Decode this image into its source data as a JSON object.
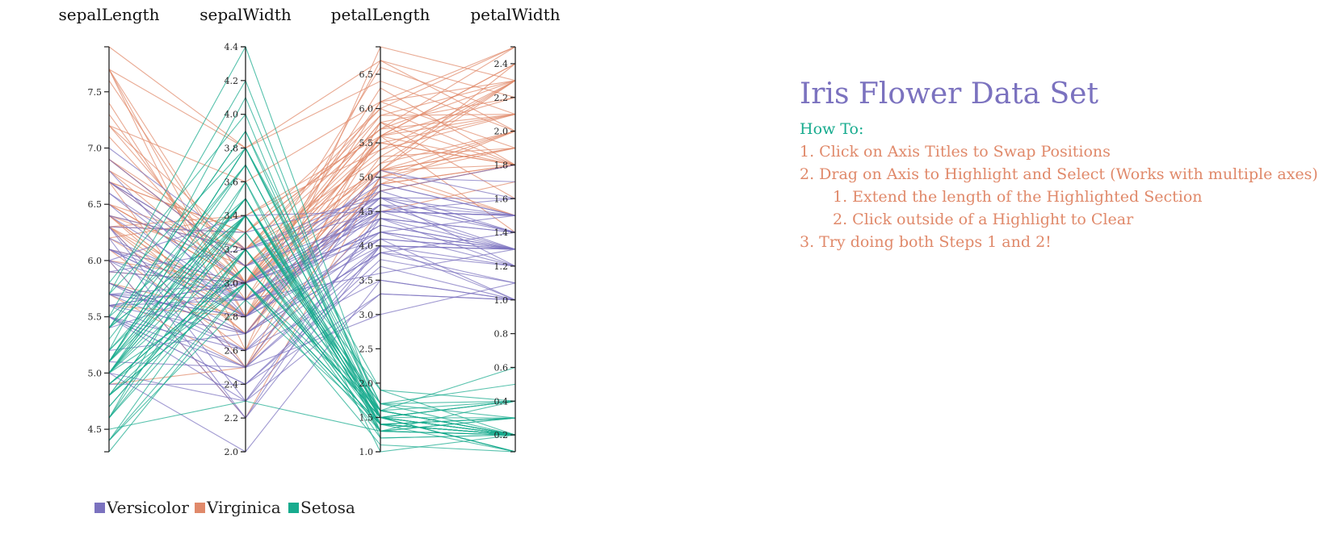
{
  "info": {
    "title": "Iris Flower Data Set",
    "howto": "How To:",
    "steps": [
      "1. Click on Axis Titles to Swap Positions",
      "2. Drag on Axis to Highlight and Select (Works with multiple axes)",
      "1. Extend the length of the Highlighted Section",
      "2. Click outside of a Highlight to Clear",
      "3. Try doing both Steps 1 and 2!"
    ]
  },
  "colors": {
    "Versicolor": "#7b72bf",
    "Virginica": "#e0896a",
    "Setosa": "#17ab8e"
  },
  "chart_data": {
    "type": "parallel-coordinates",
    "dimensions": [
      {
        "name": "sepalLength",
        "range": [
          4.3,
          7.9
        ],
        "ticks": [
          4.5,
          5.0,
          5.5,
          6.0,
          6.5,
          7.0,
          7.5
        ]
      },
      {
        "name": "sepalWidth",
        "range": [
          2.0,
          4.4
        ],
        "ticks": [
          2.0,
          2.2,
          2.4,
          2.6,
          2.8,
          3.0,
          3.2,
          3.4,
          3.6,
          3.8,
          4.0,
          4.2,
          4.4
        ]
      },
      {
        "name": "petalLength",
        "range": [
          1.0,
          6.9
        ],
        "ticks": [
          1.0,
          1.5,
          2.0,
          2.5,
          3.0,
          3.5,
          4.0,
          4.5,
          5.0,
          5.5,
          6.0,
          6.5
        ]
      },
      {
        "name": "petalWidth",
        "range": [
          0.1,
          2.5
        ],
        "ticks": [
          0.2,
          0.4,
          0.6,
          0.8,
          1.0,
          1.2,
          1.4,
          1.6,
          1.8,
          2.0,
          2.2,
          2.4
        ]
      }
    ],
    "legend": [
      "Versicolor",
      "Virginica",
      "Setosa"
    ],
    "series": [
      {
        "name": "Setosa",
        "values": [
          [
            5.1,
            3.5,
            1.4,
            0.2
          ],
          [
            4.9,
            3.0,
            1.4,
            0.2
          ],
          [
            4.7,
            3.2,
            1.3,
            0.2
          ],
          [
            4.6,
            3.1,
            1.5,
            0.2
          ],
          [
            5.0,
            3.6,
            1.4,
            0.2
          ],
          [
            5.4,
            3.9,
            1.7,
            0.4
          ],
          [
            4.6,
            3.4,
            1.4,
            0.3
          ],
          [
            5.0,
            3.4,
            1.5,
            0.2
          ],
          [
            4.4,
            2.9,
            1.4,
            0.2
          ],
          [
            4.9,
            3.1,
            1.5,
            0.1
          ],
          [
            5.4,
            3.7,
            1.5,
            0.2
          ],
          [
            4.8,
            3.4,
            1.6,
            0.2
          ],
          [
            4.8,
            3.0,
            1.4,
            0.1
          ],
          [
            4.3,
            3.0,
            1.1,
            0.1
          ],
          [
            5.8,
            4.0,
            1.2,
            0.2
          ],
          [
            5.7,
            4.4,
            1.5,
            0.4
          ],
          [
            5.4,
            3.9,
            1.3,
            0.4
          ],
          [
            5.1,
            3.5,
            1.4,
            0.3
          ],
          [
            5.7,
            3.8,
            1.7,
            0.3
          ],
          [
            5.1,
            3.8,
            1.5,
            0.3
          ],
          [
            5.4,
            3.4,
            1.7,
            0.2
          ],
          [
            5.1,
            3.7,
            1.5,
            0.4
          ],
          [
            4.6,
            3.6,
            1.0,
            0.2
          ],
          [
            5.1,
            3.3,
            1.7,
            0.5
          ],
          [
            4.8,
            3.4,
            1.9,
            0.2
          ],
          [
            5.0,
            3.0,
            1.6,
            0.2
          ],
          [
            5.0,
            3.4,
            1.6,
            0.4
          ],
          [
            5.2,
            3.5,
            1.5,
            0.2
          ],
          [
            5.2,
            3.4,
            1.4,
            0.2
          ],
          [
            4.7,
            3.2,
            1.6,
            0.2
          ],
          [
            4.8,
            3.1,
            1.6,
            0.2
          ],
          [
            5.4,
            3.4,
            1.5,
            0.4
          ],
          [
            5.2,
            4.1,
            1.5,
            0.1
          ],
          [
            5.5,
            4.2,
            1.4,
            0.2
          ],
          [
            4.9,
            3.1,
            1.5,
            0.1
          ],
          [
            5.0,
            3.2,
            1.2,
            0.2
          ],
          [
            5.5,
            3.5,
            1.3,
            0.2
          ],
          [
            4.9,
            3.1,
            1.5,
            0.1
          ],
          [
            4.4,
            3.0,
            1.3,
            0.2
          ],
          [
            5.1,
            3.4,
            1.5,
            0.2
          ],
          [
            5.0,
            3.5,
            1.3,
            0.3
          ],
          [
            4.5,
            2.3,
            1.3,
            0.3
          ],
          [
            4.4,
            3.2,
            1.3,
            0.2
          ],
          [
            5.0,
            3.5,
            1.6,
            0.6
          ],
          [
            5.1,
            3.8,
            1.9,
            0.4
          ],
          [
            4.8,
            3.0,
            1.4,
            0.3
          ],
          [
            5.1,
            3.8,
            1.6,
            0.2
          ],
          [
            4.6,
            3.2,
            1.4,
            0.2
          ],
          [
            5.3,
            3.7,
            1.5,
            0.2
          ],
          [
            5.0,
            3.3,
            1.4,
            0.2
          ]
        ]
      },
      {
        "name": "Versicolor",
        "values": [
          [
            7.0,
            3.2,
            4.7,
            1.4
          ],
          [
            6.4,
            3.2,
            4.5,
            1.5
          ],
          [
            6.9,
            3.1,
            4.9,
            1.5
          ],
          [
            5.5,
            2.3,
            4.0,
            1.3
          ],
          [
            6.5,
            2.8,
            4.6,
            1.5
          ],
          [
            5.7,
            2.8,
            4.5,
            1.3
          ],
          [
            6.3,
            3.3,
            4.7,
            1.6
          ],
          [
            4.9,
            2.4,
            3.3,
            1.0
          ],
          [
            6.6,
            2.9,
            4.6,
            1.3
          ],
          [
            5.2,
            2.7,
            3.9,
            1.4
          ],
          [
            5.0,
            2.0,
            3.5,
            1.0
          ],
          [
            5.9,
            3.0,
            4.2,
            1.5
          ],
          [
            6.0,
            2.2,
            4.0,
            1.0
          ],
          [
            6.1,
            2.9,
            4.7,
            1.4
          ],
          [
            5.6,
            2.9,
            3.6,
            1.3
          ],
          [
            6.7,
            3.1,
            4.4,
            1.4
          ],
          [
            5.6,
            3.0,
            4.5,
            1.5
          ],
          [
            5.8,
            2.7,
            4.1,
            1.0
          ],
          [
            6.2,
            2.2,
            4.5,
            1.5
          ],
          [
            5.6,
            2.5,
            3.9,
            1.1
          ],
          [
            5.9,
            3.2,
            4.8,
            1.8
          ],
          [
            6.1,
            2.8,
            4.0,
            1.3
          ],
          [
            6.3,
            2.5,
            4.9,
            1.5
          ],
          [
            6.1,
            2.8,
            4.7,
            1.2
          ],
          [
            6.4,
            2.9,
            4.3,
            1.3
          ],
          [
            6.6,
            3.0,
            4.4,
            1.4
          ],
          [
            6.8,
            2.8,
            4.8,
            1.4
          ],
          [
            6.7,
            3.0,
            5.0,
            1.7
          ],
          [
            6.0,
            2.9,
            4.5,
            1.5
          ],
          [
            5.7,
            2.6,
            3.5,
            1.0
          ],
          [
            5.5,
            2.4,
            3.8,
            1.1
          ],
          [
            5.5,
            2.4,
            3.7,
            1.0
          ],
          [
            5.8,
            2.7,
            3.9,
            1.2
          ],
          [
            6.0,
            2.7,
            5.1,
            1.6
          ],
          [
            5.4,
            3.0,
            4.5,
            1.5
          ],
          [
            6.0,
            3.4,
            4.5,
            1.6
          ],
          [
            6.7,
            3.1,
            4.7,
            1.5
          ],
          [
            6.3,
            2.3,
            4.4,
            1.3
          ],
          [
            5.6,
            3.0,
            4.1,
            1.3
          ],
          [
            5.5,
            2.5,
            4.0,
            1.3
          ],
          [
            5.5,
            2.6,
            4.4,
            1.2
          ],
          [
            6.1,
            3.0,
            4.6,
            1.4
          ],
          [
            5.8,
            2.6,
            4.0,
            1.2
          ],
          [
            5.0,
            2.3,
            3.3,
            1.0
          ],
          [
            5.6,
            2.7,
            4.2,
            1.3
          ],
          [
            5.7,
            3.0,
            4.2,
            1.2
          ],
          [
            5.7,
            2.9,
            4.2,
            1.3
          ],
          [
            6.2,
            2.9,
            4.3,
            1.3
          ],
          [
            5.1,
            2.5,
            3.0,
            1.1
          ],
          [
            5.7,
            2.8,
            4.1,
            1.3
          ]
        ]
      },
      {
        "name": "Virginica",
        "values": [
          [
            6.3,
            3.3,
            6.0,
            2.5
          ],
          [
            5.8,
            2.7,
            5.1,
            1.9
          ],
          [
            7.1,
            3.0,
            5.9,
            2.1
          ],
          [
            6.3,
            2.9,
            5.6,
            1.8
          ],
          [
            6.5,
            3.0,
            5.8,
            2.2
          ],
          [
            7.6,
            3.0,
            6.6,
            2.1
          ],
          [
            4.9,
            2.5,
            4.5,
            1.7
          ],
          [
            7.3,
            2.9,
            6.3,
            1.8
          ],
          [
            6.7,
            2.5,
            5.8,
            1.8
          ],
          [
            7.2,
            3.6,
            6.1,
            2.5
          ],
          [
            6.5,
            3.2,
            5.1,
            2.0
          ],
          [
            6.4,
            2.7,
            5.3,
            1.9
          ],
          [
            6.8,
            3.0,
            5.5,
            2.1
          ],
          [
            5.7,
            2.5,
            5.0,
            2.0
          ],
          [
            5.8,
            2.8,
            5.1,
            2.4
          ],
          [
            6.4,
            3.2,
            5.3,
            2.3
          ],
          [
            6.5,
            3.0,
            5.5,
            1.8
          ],
          [
            7.7,
            3.8,
            6.7,
            2.2
          ],
          [
            7.7,
            2.6,
            6.9,
            2.3
          ],
          [
            6.0,
            2.2,
            5.0,
            1.5
          ],
          [
            6.9,
            3.2,
            5.7,
            2.3
          ],
          [
            5.6,
            2.8,
            4.9,
            2.0
          ],
          [
            7.7,
            2.8,
            6.7,
            2.0
          ],
          [
            6.3,
            2.7,
            4.9,
            1.8
          ],
          [
            6.7,
            3.3,
            5.7,
            2.1
          ],
          [
            7.2,
            3.2,
            6.0,
            1.8
          ],
          [
            6.2,
            2.8,
            4.8,
            1.8
          ],
          [
            6.1,
            3.0,
            4.9,
            1.8
          ],
          [
            6.4,
            2.8,
            5.6,
            2.1
          ],
          [
            7.2,
            3.0,
            5.8,
            1.6
          ],
          [
            7.4,
            2.8,
            6.1,
            1.9
          ],
          [
            7.9,
            3.8,
            6.4,
            2.0
          ],
          [
            6.4,
            2.8,
            5.6,
            2.2
          ],
          [
            6.3,
            2.8,
            5.1,
            1.5
          ],
          [
            6.1,
            2.6,
            5.6,
            1.4
          ],
          [
            7.7,
            3.0,
            6.1,
            2.3
          ],
          [
            6.3,
            3.4,
            5.6,
            2.4
          ],
          [
            6.4,
            3.1,
            5.5,
            1.8
          ],
          [
            6.0,
            3.0,
            4.8,
            1.8
          ],
          [
            6.9,
            3.1,
            5.4,
            2.1
          ],
          [
            6.7,
            3.1,
            5.6,
            2.4
          ],
          [
            6.9,
            3.1,
            5.1,
            2.3
          ],
          [
            5.8,
            2.7,
            5.1,
            1.9
          ],
          [
            6.8,
            3.2,
            5.9,
            2.3
          ],
          [
            6.7,
            3.3,
            5.7,
            2.5
          ],
          [
            6.7,
            3.0,
            5.2,
            2.3
          ],
          [
            6.3,
            2.5,
            5.0,
            1.9
          ],
          [
            6.5,
            3.0,
            5.2,
            2.0
          ],
          [
            6.2,
            3.4,
            5.4,
            2.3
          ],
          [
            5.9,
            3.0,
            5.1,
            1.8
          ]
        ]
      }
    ]
  }
}
